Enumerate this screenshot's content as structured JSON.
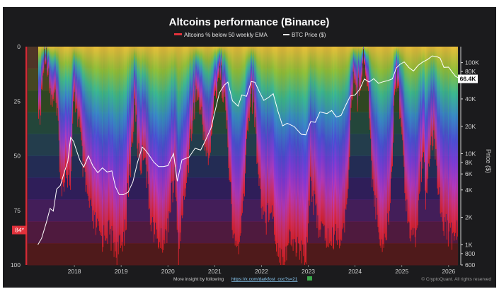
{
  "chart_data": {
    "type": "bar+line",
    "title": "Altcoins performance (Binance)",
    "series": [
      {
        "name": "Altcoins % below 50 weekly EMA",
        "axis": "left",
        "color": "#e0313b",
        "points": [
          [
            2017.22,
            0
          ],
          [
            2017.24,
            35
          ],
          [
            2017.28,
            35
          ],
          [
            2017.3,
            18
          ],
          [
            2017.34,
            18
          ],
          [
            2017.36,
            0
          ],
          [
            2017.45,
            10
          ],
          [
            2017.5,
            25
          ],
          [
            2017.58,
            22
          ],
          [
            2017.66,
            40
          ],
          [
            2017.73,
            70
          ],
          [
            2017.8,
            55
          ],
          [
            2017.88,
            60
          ],
          [
            2017.93,
            62
          ],
          [
            2017.98,
            30
          ],
          [
            2018.02,
            25
          ],
          [
            2018.1,
            35
          ],
          [
            2018.2,
            60
          ],
          [
            2018.3,
            72
          ],
          [
            2018.4,
            80
          ],
          [
            2018.5,
            85
          ],
          [
            2018.6,
            88
          ],
          [
            2018.7,
            84
          ],
          [
            2018.8,
            88
          ],
          [
            2018.9,
            94
          ],
          [
            2019.0,
            92
          ],
          [
            2019.1,
            80
          ],
          [
            2019.2,
            55
          ],
          [
            2019.25,
            40
          ],
          [
            2019.3,
            25
          ],
          [
            2019.35,
            45
          ],
          [
            2019.42,
            55
          ],
          [
            2019.5,
            45
          ],
          [
            2019.58,
            70
          ],
          [
            2019.65,
            80
          ],
          [
            2019.75,
            88
          ],
          [
            2019.85,
            90
          ],
          [
            2019.95,
            88
          ],
          [
            2020.05,
            72
          ],
          [
            2020.15,
            60
          ],
          [
            2020.22,
            95
          ],
          [
            2020.3,
            80
          ],
          [
            2020.4,
            60
          ],
          [
            2020.5,
            40
          ],
          [
            2020.6,
            20
          ],
          [
            2020.7,
            30
          ],
          [
            2020.8,
            45
          ],
          [
            2020.88,
            55
          ],
          [
            2020.95,
            35
          ],
          [
            2021.0,
            25
          ],
          [
            2021.1,
            10
          ],
          [
            2021.2,
            22
          ],
          [
            2021.3,
            50
          ],
          [
            2021.38,
            85
          ],
          [
            2021.45,
            92
          ],
          [
            2021.55,
            90
          ],
          [
            2021.62,
            70
          ],
          [
            2021.7,
            40
          ],
          [
            2021.78,
            20
          ],
          [
            2021.85,
            30
          ],
          [
            2021.92,
            55
          ],
          [
            2022.0,
            72
          ],
          [
            2022.1,
            80
          ],
          [
            2022.2,
            70
          ],
          [
            2022.3,
            88
          ],
          [
            2022.4,
            95
          ],
          [
            2022.5,
            96
          ],
          [
            2022.6,
            88
          ],
          [
            2022.7,
            90
          ],
          [
            2022.8,
            92
          ],
          [
            2022.88,
            96
          ],
          [
            2022.95,
            95
          ],
          [
            2023.0,
            80
          ],
          [
            2023.05,
            60
          ],
          [
            2023.1,
            70
          ],
          [
            2023.2,
            80
          ],
          [
            2023.3,
            85
          ],
          [
            2023.4,
            88
          ],
          [
            2023.5,
            90
          ],
          [
            2023.6,
            85
          ],
          [
            2023.7,
            88
          ],
          [
            2023.8,
            80
          ],
          [
            2023.85,
            60
          ],
          [
            2023.9,
            40
          ],
          [
            2023.95,
            20
          ],
          [
            2024.0,
            12
          ],
          [
            2024.05,
            25
          ],
          [
            2024.1,
            15
          ],
          [
            2024.2,
            5
          ],
          [
            2024.28,
            20
          ],
          [
            2024.35,
            55
          ],
          [
            2024.45,
            75
          ],
          [
            2024.55,
            88
          ],
          [
            2024.62,
            90
          ],
          [
            2024.7,
            82
          ],
          [
            2024.78,
            60
          ],
          [
            2024.85,
            20
          ],
          [
            2024.9,
            10
          ],
          [
            2024.95,
            25
          ],
          [
            2025.0,
            40
          ],
          [
            2025.05,
            60
          ],
          [
            2025.15,
            80
          ],
          [
            2025.25,
            90
          ],
          [
            2025.32,
            85
          ],
          [
            2025.4,
            60
          ],
          [
            2025.45,
            50
          ],
          [
            2025.52,
            70
          ],
          [
            2025.6,
            55
          ],
          [
            2025.68,
            40
          ],
          [
            2025.75,
            55
          ],
          [
            2025.82,
            75
          ],
          [
            2025.9,
            80
          ],
          [
            2026.0,
            85
          ],
          [
            2026.1,
            88
          ],
          [
            2026.2,
            84
          ]
        ],
        "current_label": "84*"
      },
      {
        "name": "BTC Price ($)",
        "axis": "right",
        "color": "#ffffff",
        "points": [
          [
            2017.22,
            1000
          ],
          [
            2017.3,
            1150
          ],
          [
            2017.4,
            1700
          ],
          [
            2017.48,
            2500
          ],
          [
            2017.55,
            2400
          ],
          [
            2017.62,
            4200
          ],
          [
            2017.7,
            4500
          ],
          [
            2017.78,
            6000
          ],
          [
            2017.86,
            8000
          ],
          [
            2017.92,
            15000
          ],
          [
            2017.98,
            14000
          ],
          [
            2018.05,
            11000
          ],
          [
            2018.12,
            8500
          ],
          [
            2018.2,
            7000
          ],
          [
            2018.3,
            9200
          ],
          [
            2018.4,
            7200
          ],
          [
            2018.5,
            6300
          ],
          [
            2018.6,
            7200
          ],
          [
            2018.7,
            6400
          ],
          [
            2018.8,
            6400
          ],
          [
            2018.88,
            4200
          ],
          [
            2018.96,
            3500
          ],
          [
            2019.05,
            3600
          ],
          [
            2019.15,
            3900
          ],
          [
            2019.25,
            5000
          ],
          [
            2019.35,
            8000
          ],
          [
            2019.45,
            11500
          ],
          [
            2019.5,
            11000
          ],
          [
            2019.58,
            10000
          ],
          [
            2019.7,
            8300
          ],
          [
            2019.8,
            7400
          ],
          [
            2019.9,
            7200
          ],
          [
            2020.0,
            7200
          ],
          [
            2020.12,
            9800
          ],
          [
            2020.2,
            5000
          ],
          [
            2020.3,
            8800
          ],
          [
            2020.45,
            9400
          ],
          [
            2020.58,
            11500
          ],
          [
            2020.7,
            10700
          ],
          [
            2020.8,
            13500
          ],
          [
            2020.92,
            19000
          ],
          [
            2021.0,
            29000
          ],
          [
            2021.1,
            48000
          ],
          [
            2021.2,
            57000
          ],
          [
            2021.28,
            60000
          ],
          [
            2021.38,
            37000
          ],
          [
            2021.5,
            33000
          ],
          [
            2021.58,
            45000
          ],
          [
            2021.68,
            44000
          ],
          [
            2021.78,
            63000
          ],
          [
            2021.86,
            60000
          ],
          [
            2021.95,
            47000
          ],
          [
            2022.05,
            38000
          ],
          [
            2022.15,
            42000
          ],
          [
            2022.25,
            47000
          ],
          [
            2022.35,
            30000
          ],
          [
            2022.45,
            20000
          ],
          [
            2022.55,
            21000
          ],
          [
            2022.7,
            19500
          ],
          [
            2022.85,
            16500
          ],
          [
            2022.95,
            16600
          ],
          [
            2023.05,
            23000
          ],
          [
            2023.15,
            22000
          ],
          [
            2023.25,
            28000
          ],
          [
            2023.4,
            27000
          ],
          [
            2023.5,
            30000
          ],
          [
            2023.6,
            26000
          ],
          [
            2023.7,
            27000
          ],
          [
            2023.8,
            34000
          ],
          [
            2023.9,
            42000
          ],
          [
            2024.0,
            43000
          ],
          [
            2024.1,
            51000
          ],
          [
            2024.2,
            68000
          ],
          [
            2024.3,
            63000
          ],
          [
            2024.4,
            67000
          ],
          [
            2024.5,
            58000
          ],
          [
            2024.6,
            60000
          ],
          [
            2024.7,
            63000
          ],
          [
            2024.8,
            68000
          ],
          [
            2024.88,
            90000
          ],
          [
            2024.96,
            97000
          ],
          [
            2025.05,
            100000
          ],
          [
            2025.15,
            86000
          ],
          [
            2025.25,
            80000
          ],
          [
            2025.35,
            95000
          ],
          [
            2025.45,
            105000
          ],
          [
            2025.55,
            110000
          ],
          [
            2025.65,
            117000
          ],
          [
            2025.75,
            113000
          ],
          [
            2025.82,
            110000
          ],
          [
            2025.9,
            90000
          ],
          [
            2026.0,
            92000
          ],
          [
            2026.08,
            80000
          ],
          [
            2026.15,
            70000
          ],
          [
            2026.2,
            66400
          ]
        ],
        "current_label": "66.4K"
      }
    ],
    "left_axis": {
      "range": [
        0,
        100
      ],
      "inverted": true,
      "ticks": [
        0,
        25,
        50,
        75,
        100
      ],
      "current_value": 84
    },
    "right_axis": {
      "label": "Price ($)",
      "scale": "log",
      "range": [
        600,
        150000
      ],
      "ticks": [
        {
          "value": 100000,
          "label": "100K"
        },
        {
          "value": 80000,
          "label": "80K"
        },
        {
          "value": 40000,
          "label": "40K"
        },
        {
          "value": 20000,
          "label": "20K"
        },
        {
          "value": 10000,
          "label": "10K"
        },
        {
          "value": 8000,
          "label": "8K"
        },
        {
          "value": 6000,
          "label": "6K"
        },
        {
          "value": 4000,
          "label": "4K"
        },
        {
          "value": 2000,
          "label": "2K"
        },
        {
          "value": 1000,
          "label": "1K"
        },
        {
          "value": 800,
          "label": "800"
        },
        {
          "value": 600,
          "label": "600"
        }
      ],
      "current_value": 66400
    },
    "x_axis": {
      "range": [
        2017.0,
        2026.2
      ],
      "ticks": [
        {
          "value": 2018,
          "label": "2018"
        },
        {
          "value": 2019,
          "label": "2019"
        },
        {
          "value": 2020,
          "label": "2020"
        },
        {
          "value": 2021,
          "label": "2021"
        },
        {
          "value": 2022,
          "label": "2022"
        },
        {
          "value": 2023,
          "label": "2023"
        },
        {
          "value": 2024,
          "label": "2024"
        },
        {
          "value": 2025,
          "label": "2025"
        },
        {
          "value": 2026,
          "label": "2026"
        }
      ]
    },
    "background_band_colors": [
      "#7a4a30",
      "#6a6a26",
      "#3f6a26",
      "#2a6a52",
      "#2a5a72",
      "#2a3a82",
      "#40208a",
      "#64208a",
      "#7a1a5a",
      "#7a1a1a"
    ],
    "bar_gradient": [
      "#ffd23c",
      "#9bd23c",
      "#3cc8a0",
      "#3c90dc",
      "#5050e6",
      "#8c3ce6",
      "#c83cc8",
      "#e63264",
      "#e61e1e"
    ],
    "legend": [
      "Altcoins % below 50 weekly EMA",
      "BTC Price ($)"
    ]
  },
  "footer": {
    "prefix": "More insight by following",
    "link": "https://x.com/darkfost_coc?s=21",
    "credit": "© CryptoQuant. All rights reserved"
  },
  "colors": {
    "background": "#1b1b1d",
    "alt_series": "#e0313b",
    "btc_line": "#ffffff",
    "footer_link": "#8fd3ff"
  }
}
